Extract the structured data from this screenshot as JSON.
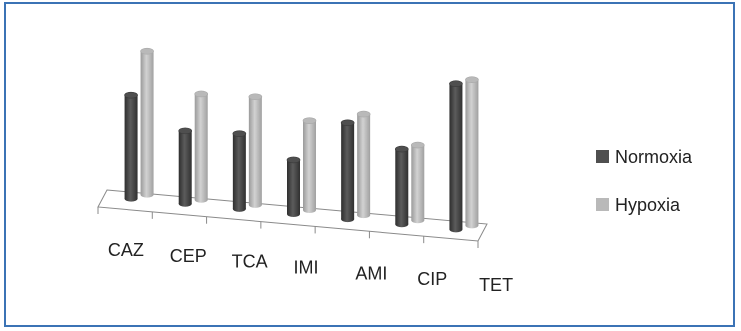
{
  "chart_data": {
    "type": "bar",
    "categories": [
      "CAZ",
      "CEP",
      "TCA",
      "IMI",
      "AMI",
      "CIP",
      "TET"
    ],
    "series": [
      {
        "name": "Normoxia",
        "values": [
          44,
          31,
          32,
          23,
          41,
          32,
          62
        ]
      },
      {
        "name": "Hypoxia",
        "values": [
          61,
          45,
          46,
          38,
          43,
          32,
          62
        ]
      }
    ],
    "xlabel": "",
    "ylabel": "",
    "ylim": [
      0,
      70
    ],
    "grid": false,
    "legend_position": "right",
    "style_3d": true
  },
  "colors": {
    "normoxia": "#4f4f4f",
    "hypoxia": "#b9b9b9",
    "frame": "#3b73b5"
  }
}
